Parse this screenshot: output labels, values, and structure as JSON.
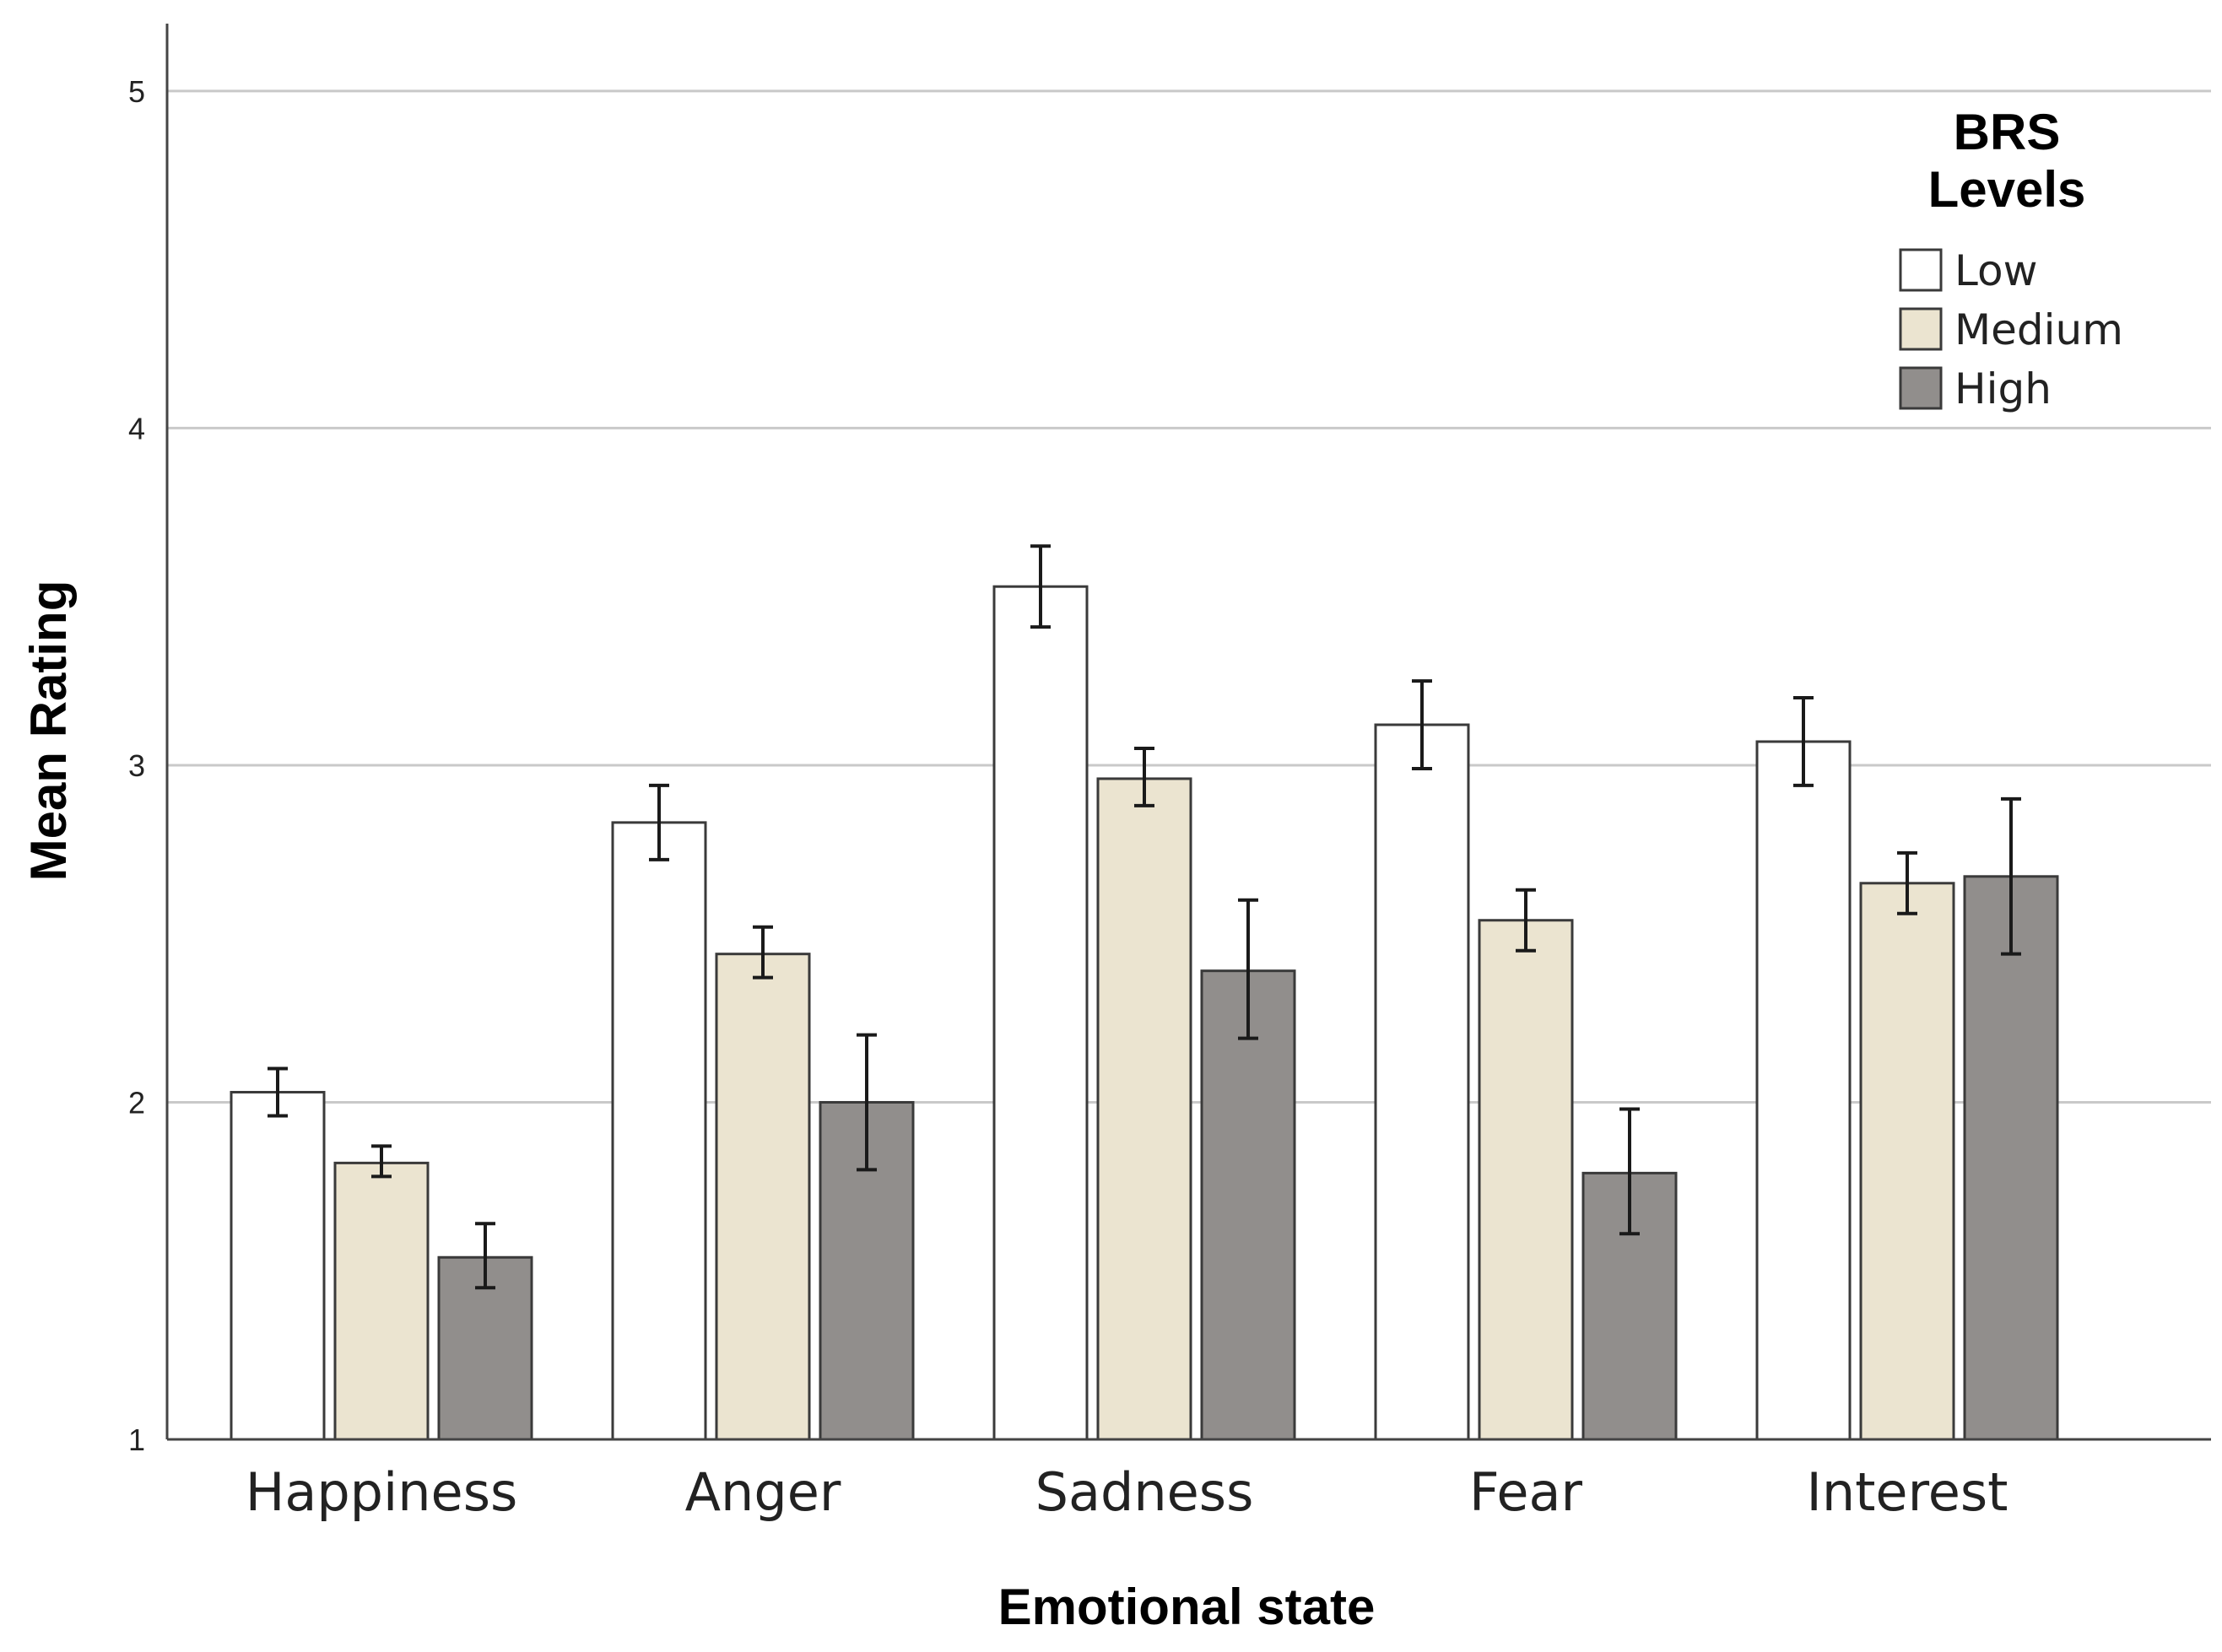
{
  "chart_data": {
    "type": "bar",
    "categories": [
      "Happiness",
      "Anger",
      "Sadness",
      "Fear",
      "Interest"
    ],
    "series": [
      {
        "name": "Low",
        "color": "#ffffff",
        "values": [
          2.03,
          2.83,
          3.53,
          3.12,
          3.07
        ],
        "err_low": [
          1.96,
          2.72,
          3.41,
          2.99,
          2.94
        ],
        "err_high": [
          2.1,
          2.94,
          3.65,
          3.25,
          3.2
        ]
      },
      {
        "name": "Medium",
        "color": "#ebe4d0",
        "values": [
          1.82,
          2.44,
          2.96,
          2.54,
          2.65
        ],
        "err_low": [
          1.78,
          2.37,
          2.88,
          2.45,
          2.56
        ],
        "err_high": [
          1.87,
          2.52,
          3.05,
          2.63,
          2.74
        ]
      },
      {
        "name": "High",
        "color": "#918e8c",
        "values": [
          1.54,
          2.0,
          2.39,
          1.79,
          2.67
        ],
        "err_low": [
          1.45,
          1.8,
          2.19,
          1.61,
          2.44
        ],
        "err_high": [
          1.64,
          2.2,
          2.6,
          1.98,
          2.9
        ]
      }
    ],
    "xlabel": "Emotional state",
    "ylabel": "Mean Rating",
    "ylim": [
      1,
      5.2
    ],
    "yticks": [
      "1",
      "2",
      "3",
      "4",
      "5"
    ],
    "legend_title": "BRS Levels",
    "legend_title_lines": [
      "BRS",
      "Levels"
    ],
    "legend_position": "top-right",
    "grid": true
  }
}
